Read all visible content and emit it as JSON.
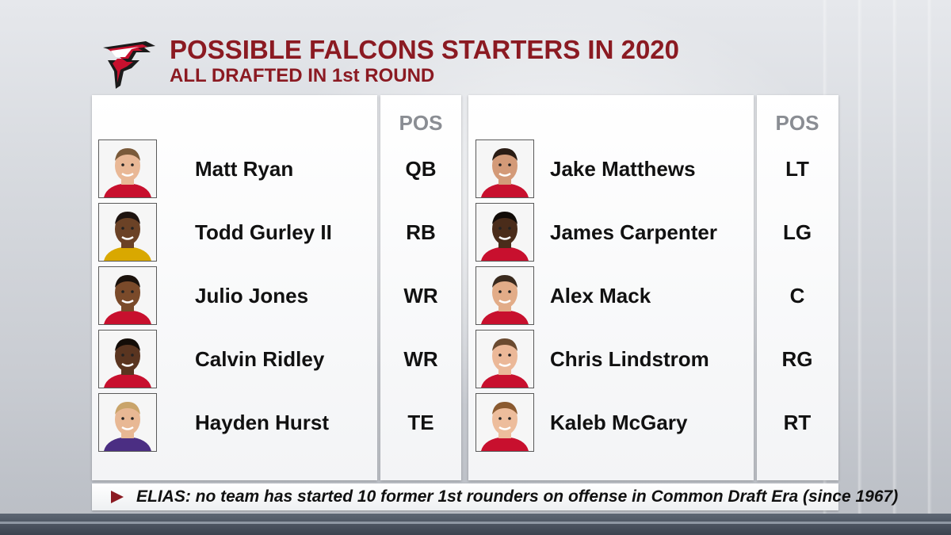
{
  "header": {
    "title": "POSSIBLE FALCONS STARTERS IN 2020",
    "subtitle": "ALL DRAFTED IN 1st ROUND",
    "logo_icon": "falcons-logo-icon"
  },
  "columns": {
    "pos_label": "POS"
  },
  "left_players": [
    {
      "name": "Matt Ryan",
      "pos": "QB",
      "jersey_color": "#c8102e",
      "skin": "#e9b896",
      "hair": "#7a5a3a"
    },
    {
      "name": "Todd Gurley II",
      "pos": "RB",
      "jersey_color": "#d9a800",
      "skin": "#6b4226",
      "hair": "#1e1410"
    },
    {
      "name": "Julio Jones",
      "pos": "WR",
      "jersey_color": "#c8102e",
      "skin": "#7a4a2a",
      "hair": "#1b120c"
    },
    {
      "name": "Calvin Ridley",
      "pos": "WR",
      "jersey_color": "#c8102e",
      "skin": "#5a3520",
      "hair": "#140d08"
    },
    {
      "name": "Hayden Hurst",
      "pos": "TE",
      "jersey_color": "#4b2e83",
      "skin": "#e8b894",
      "hair": "#c9a46a"
    }
  ],
  "right_players": [
    {
      "name": "Jake Matthews",
      "pos": "LT",
      "jersey_color": "#c8102e",
      "skin": "#d39a78",
      "hair": "#2a1c14"
    },
    {
      "name": "James Carpenter",
      "pos": "LG",
      "jersey_color": "#c8102e",
      "skin": "#4a2c1a",
      "hair": "#120c08"
    },
    {
      "name": "Alex Mack",
      "pos": "C",
      "jersey_color": "#c8102e",
      "skin": "#e2ac88",
      "hair": "#3a2a1e"
    },
    {
      "name": "Chris Lindstrom",
      "pos": "RG",
      "jersey_color": "#c8102e",
      "skin": "#ebb898",
      "hair": "#6a4a30"
    },
    {
      "name": "Kaleb McGary",
      "pos": "RT",
      "jersey_color": "#c8102e",
      "skin": "#edbd9c",
      "hair": "#8a5a30"
    }
  ],
  "footer": {
    "note": "ELIAS: no team has started 10 former 1st rounders on offense in Common Draft Era (since 1967)",
    "arrow_icon": "play-arrow-icon"
  },
  "colors": {
    "brand_red": "#8b1a22",
    "text": "#111111",
    "pos_header": "#8a8d93"
  }
}
